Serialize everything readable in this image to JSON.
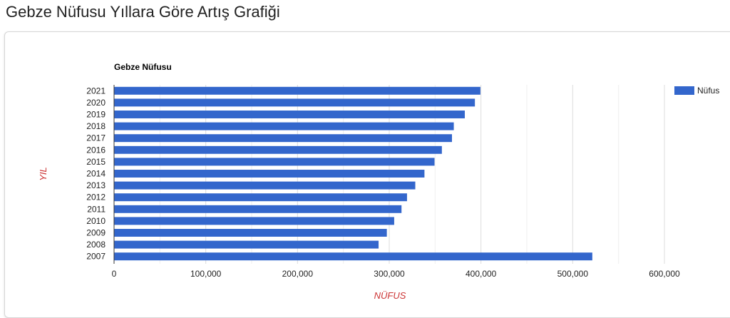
{
  "page": {
    "title": "Gebze Nüfusu Yıllara Göre Artış Grafiği"
  },
  "colors": {
    "bar": "#3366cc",
    "axis_title": "#cc3333",
    "grid": "#e6e6e6",
    "text": "#222222"
  },
  "chart_data": {
    "type": "bar",
    "orientation": "horizontal",
    "title": "Gebze Nüfusu",
    "xlabel": "NÜFUS",
    "ylabel": "YIL",
    "categories": [
      "2021",
      "2020",
      "2019",
      "2018",
      "2017",
      "2016",
      "2015",
      "2014",
      "2013",
      "2012",
      "2011",
      "2010",
      "2009",
      "2008",
      "2007"
    ],
    "series": [
      {
        "name": "Nüfus",
        "values": [
          399000,
          393000,
          382000,
          370000,
          368000,
          357000,
          349000,
          338000,
          328000,
          319000,
          313000,
          305000,
          297000,
          288000,
          521000
        ]
      }
    ],
    "xlim": [
      0,
      600000
    ],
    "x_ticks": [
      0,
      100000,
      200000,
      300000,
      400000,
      500000,
      600000
    ],
    "x_tick_labels": [
      "0",
      "100,000",
      "200,000",
      "300,000",
      "400,000",
      "500,000",
      "600,000"
    ],
    "grid": true,
    "legend": "right"
  }
}
